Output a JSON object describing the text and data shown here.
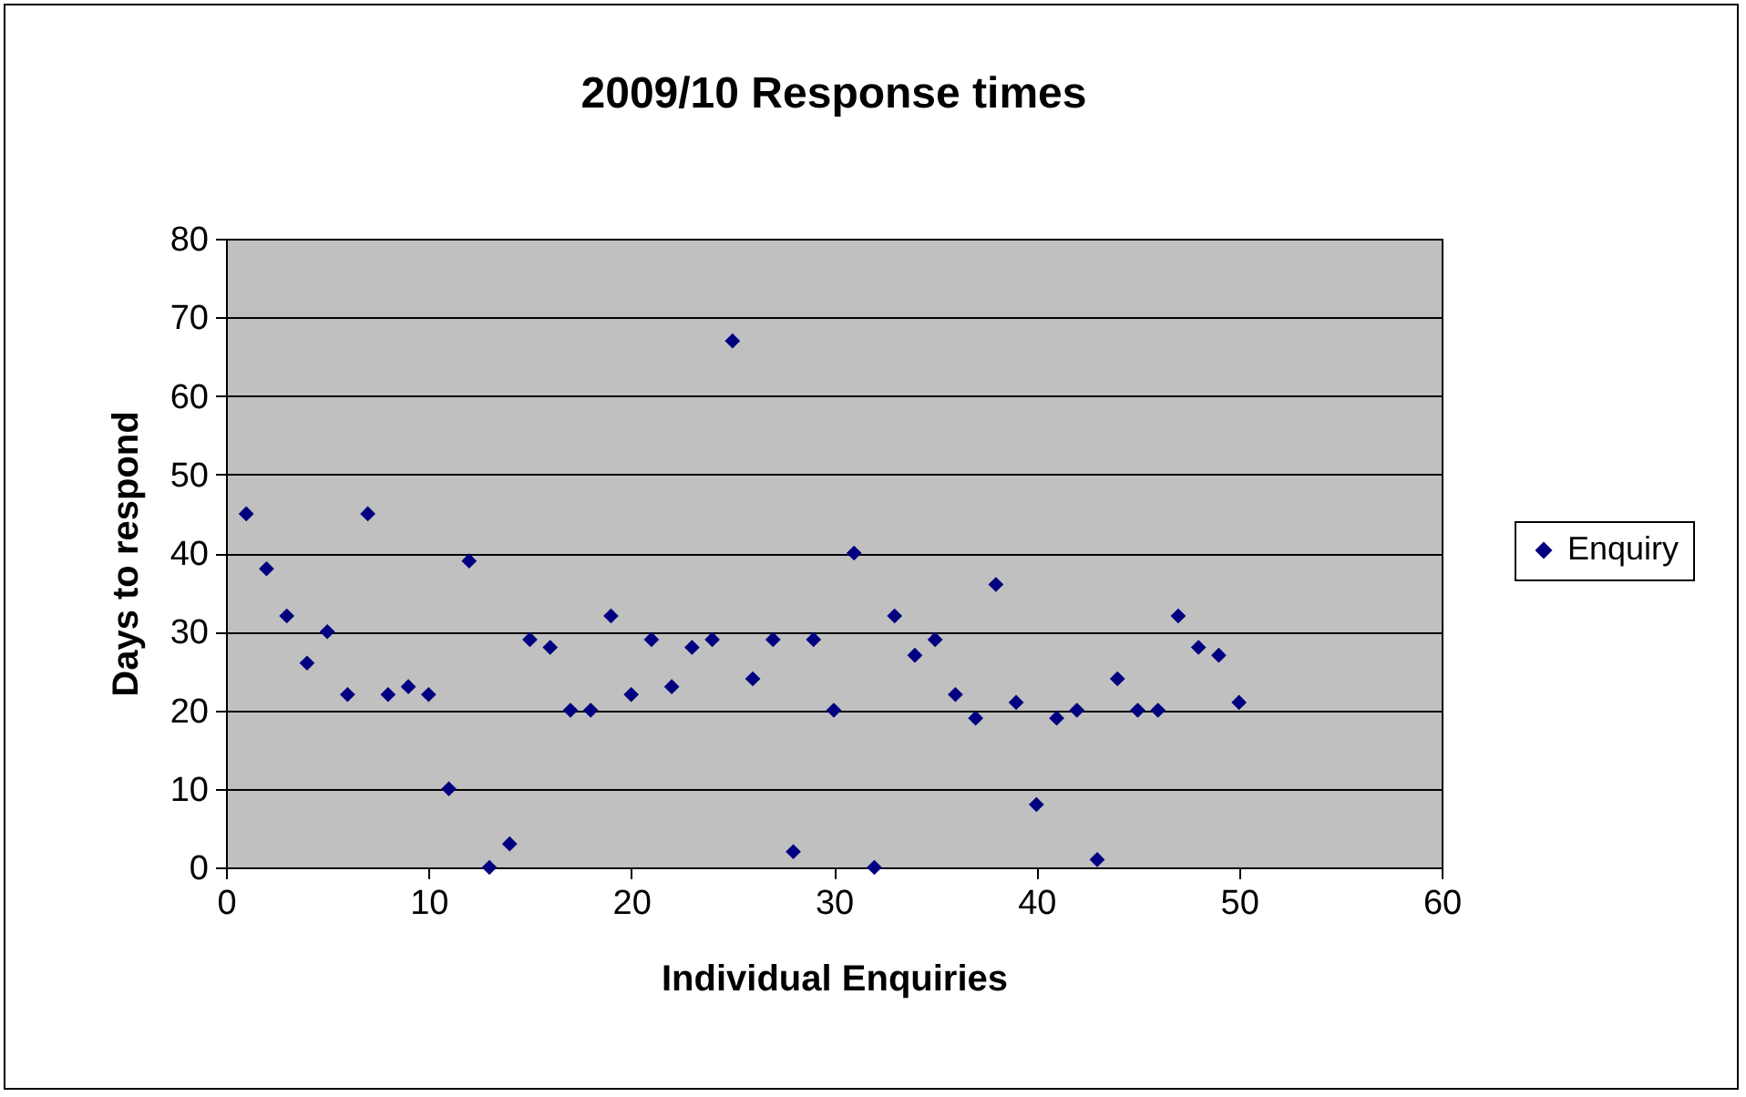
{
  "chart_data": {
    "type": "scatter",
    "title": "2009/10 Response times",
    "xlabel": "Individual Enquiries",
    "ylabel": "Days to respond",
    "x": [
      1,
      2,
      3,
      4,
      5,
      6,
      7,
      8,
      9,
      10,
      11,
      12,
      13,
      14,
      15,
      16,
      17,
      18,
      19,
      20,
      21,
      22,
      23,
      24,
      25,
      26,
      27,
      28,
      29,
      30,
      31,
      32,
      33,
      34,
      35,
      36,
      37,
      38,
      39,
      40,
      41,
      42,
      43,
      44,
      45,
      46,
      47,
      48,
      49,
      50
    ],
    "series": [
      {
        "name": "Enquiry",
        "color": "#000080",
        "values": [
          45,
          38,
          32,
          26,
          30,
          22,
          45,
          22,
          23,
          22,
          10,
          39,
          0,
          3,
          29,
          28,
          20,
          20,
          32,
          22,
          29,
          23,
          28,
          29,
          67,
          24,
          29,
          2,
          29,
          20,
          40,
          0,
          32,
          27,
          29,
          22,
          19,
          36,
          21,
          8,
          19,
          20,
          1,
          24,
          20,
          20,
          32,
          28,
          27,
          21
        ]
      }
    ],
    "xlim": [
      0,
      60
    ],
    "xticks": [
      0,
      10,
      20,
      30,
      40,
      50,
      60
    ],
    "ylim": [
      0,
      80
    ],
    "yticks": [
      0,
      10,
      20,
      30,
      40,
      50,
      60,
      70,
      80
    ],
    "grid": "y",
    "legend": "right",
    "marker": "diamond"
  }
}
